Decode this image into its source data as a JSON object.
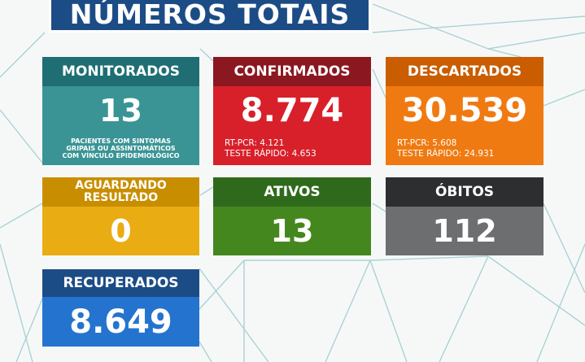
{
  "title": "NÚMEROS TOTAIS",
  "colors": {
    "monitorados_head": "#1f6e73",
    "monitorados_body": "#3a9495",
    "confirmados_head": "#8b1820",
    "confirmados_body": "#d8202a",
    "descartados_head": "#c95d00",
    "descartados_body": "#f07a12",
    "aguardando_head": "#c98e00",
    "aguardando_body": "#e9ac13",
    "ativos_head": "#2f6a1c",
    "ativos_body": "#45871f",
    "obitos_head": "#2d2e30",
    "obitos_body": "#6d6e70",
    "recuperados_head": "#1c4c86",
    "recuperados_body": "#2474cf"
  },
  "cards": {
    "monitorados": {
      "label": "MONITORADOS",
      "value": "13",
      "note_lines": [
        "PACIENTES COM SINTOMAS",
        "GRIPAIS OU ASSINTOMÁTICOS",
        "COM VÍNCULO EPIDEMIOLÓGICO"
      ]
    },
    "confirmados": {
      "label": "CONFIRMADOS",
      "value": "8.774",
      "sub_lines": [
        "RT-PCR: 4.121",
        "TESTE RÁPIDO: 4.653"
      ]
    },
    "descartados": {
      "label": "DESCARTADOS",
      "value": "30.539",
      "sub_lines": [
        "RT-PCR: 5.608",
        "TESTE RÁPIDO: 24.931"
      ]
    },
    "aguardando": {
      "label_lines": [
        "AGUARDANDO",
        "RESULTADO"
      ],
      "value": "0"
    },
    "ativos": {
      "label": "ATIVOS",
      "value": "13"
    },
    "obitos": {
      "label": "ÓBITOS",
      "value": "112"
    },
    "recuperados": {
      "label": "RECUPERADOS",
      "value": "8.649"
    }
  }
}
